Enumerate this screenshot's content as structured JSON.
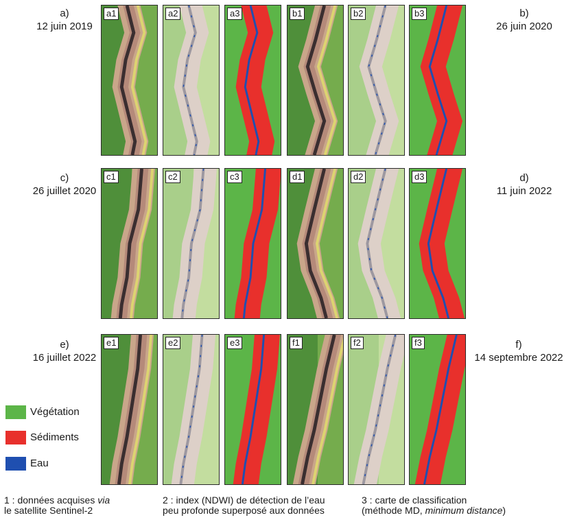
{
  "dates": [
    {
      "letter": "a)",
      "date": "12 juin 2019"
    },
    {
      "letter": "b)",
      "date": "26 juin 2020"
    },
    {
      "letter": "c)",
      "date": "26 juillet 2020"
    },
    {
      "letter": "d)",
      "date": "11 juin 2022"
    },
    {
      "letter": "e)",
      "date": "16 juillet 2022"
    },
    {
      "letter": "f)",
      "date": "14 septembre 2022"
    }
  ],
  "panel_labels": {
    "row1": [
      "a1",
      "a2",
      "a3",
      "b1",
      "b2",
      "b3"
    ],
    "row2": [
      "c1",
      "c2",
      "c3",
      "d1",
      "d2",
      "d3"
    ],
    "row3": [
      "e1",
      "e2",
      "e3",
      "f1",
      "f2",
      "f3"
    ]
  },
  "legend": [
    {
      "label": "Végétation",
      "color": "#5cb548"
    },
    {
      "label": "Sédiments",
      "color": "#e8302c"
    },
    {
      "label": "Eau",
      "color": "#1f4fb0"
    }
  ],
  "captions": {
    "c1_line1_pre": "1 : données acquises ",
    "c1_line1_it": "via",
    "c1_line2": "le satellite Sentinel-2",
    "c2_line1": "2 : index (NDWI) de détection de l’eau",
    "c2_line2": "peu profonde superposé aux données",
    "c3_line1": "3 : carte de classification",
    "c3_line2_pre": "(méthode MD, ",
    "c3_line2_it": "minimum distance",
    "c3_line2_post": ")"
  },
  "colors": {
    "vegetation": "#5cb548",
    "sediments": "#e8302c",
    "water": "#1f4fb0"
  }
}
